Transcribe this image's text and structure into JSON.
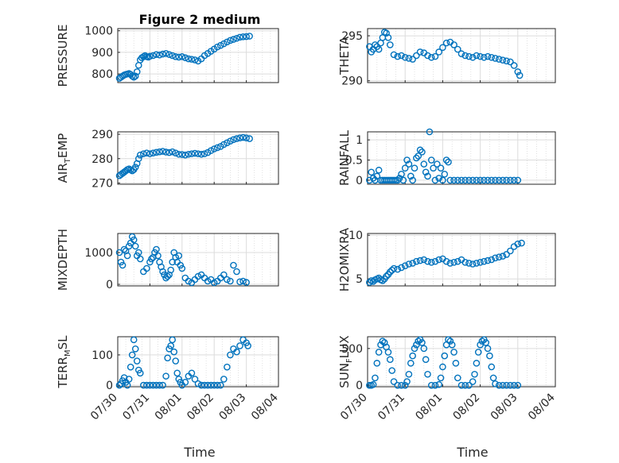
{
  "figure_title": "Figure 2 medium",
  "xlabel": "Time",
  "marker_color": "#0072BD",
  "x_ticks": [
    "07/30",
    "07/31",
    "08/01",
    "08/02",
    "08/03",
    "08/04"
  ],
  "chart_data": [
    {
      "type": "scatter",
      "ylabel": "PRESSURE",
      "yticks": [
        "800",
        "900",
        "1000"
      ],
      "ylim": [
        760,
        1010
      ],
      "grid": "on",
      "x": [
        0.05,
        0.1,
        0.15,
        0.2,
        0.25,
        0.3,
        0.35,
        0.4,
        0.45,
        0.5,
        0.55,
        0.6,
        0.65,
        0.7,
        0.75,
        0.8,
        0.85,
        0.9,
        0.95,
        1.0,
        1.1,
        1.2,
        1.3,
        1.4,
        1.5,
        1.6,
        1.7,
        1.8,
        1.9,
        2.0,
        2.1,
        2.2,
        2.3,
        2.4,
        2.5,
        2.6,
        2.7,
        2.8,
        2.9,
        3.0,
        3.1,
        3.2,
        3.3,
        3.4,
        3.5,
        3.6,
        3.7,
        3.8,
        3.9,
        4.0,
        4.1
      ],
      "y": [
        780,
        785,
        790,
        795,
        798,
        800,
        802,
        798,
        790,
        785,
        790,
        810,
        840,
        865,
        875,
        880,
        885,
        880,
        878,
        882,
        885,
        890,
        888,
        892,
        895,
        890,
        885,
        880,
        878,
        880,
        875,
        870,
        868,
        865,
        860,
        870,
        885,
        895,
        905,
        915,
        925,
        932,
        940,
        948,
        955,
        960,
        965,
        970,
        972,
        973,
        975
      ]
    },
    {
      "type": "scatter",
      "ylabel": "THETA",
      "yticks": [
        "290",
        "295"
      ],
      "ylim": [
        289.8,
        295.8
      ],
      "grid": "on",
      "x": [
        0.05,
        0.1,
        0.15,
        0.2,
        0.25,
        0.3,
        0.35,
        0.4,
        0.45,
        0.5,
        0.55,
        0.6,
        0.7,
        0.8,
        0.9,
        1.0,
        1.1,
        1.2,
        1.3,
        1.4,
        1.5,
        1.6,
        1.7,
        1.8,
        1.9,
        2.0,
        2.1,
        2.2,
        2.3,
        2.4,
        2.5,
        2.6,
        2.7,
        2.8,
        2.9,
        3.0,
        3.1,
        3.2,
        3.3,
        3.4,
        3.5,
        3.6,
        3.7,
        3.8,
        3.9,
        4.0,
        4.05
      ],
      "y": [
        293.8,
        293.2,
        293.5,
        294,
        293.8,
        293.5,
        294.2,
        294.8,
        295.4,
        295.3,
        294.8,
        294,
        292.9,
        292.7,
        292.8,
        292.6,
        292.5,
        292.4,
        292.8,
        293.2,
        293.1,
        292.8,
        292.6,
        292.7,
        293.2,
        293.7,
        294.2,
        294.3,
        294,
        293.5,
        293,
        292.8,
        292.7,
        292.6,
        292.8,
        292.7,
        292.6,
        292.7,
        292.6,
        292.5,
        292.4,
        292.3,
        292.2,
        292.1,
        291.7,
        291,
        290.6
      ]
    },
    {
      "type": "scatter",
      "ylabel": "AIR_TEMP",
      "yticks": [
        "270",
        "280",
        "290"
      ],
      "ylim": [
        269.5,
        291
      ],
      "grid": "on",
      "x": [
        0.05,
        0.1,
        0.15,
        0.2,
        0.25,
        0.3,
        0.35,
        0.4,
        0.45,
        0.5,
        0.55,
        0.6,
        0.65,
        0.7,
        0.8,
        0.9,
        1.0,
        1.1,
        1.2,
        1.3,
        1.4,
        1.5,
        1.6,
        1.7,
        1.8,
        1.9,
        2.0,
        2.1,
        2.2,
        2.3,
        2.4,
        2.5,
        2.6,
        2.7,
        2.8,
        2.9,
        3.0,
        3.1,
        3.2,
        3.3,
        3.4,
        3.5,
        3.6,
        3.7,
        3.8,
        3.9,
        4.0,
        4.1
      ],
      "y": [
        273,
        273.5,
        274,
        274.5,
        275,
        275.5,
        275.8,
        275.4,
        275,
        275.5,
        276.5,
        278,
        280,
        281.5,
        282,
        282.3,
        282,
        282.3,
        282.6,
        282.8,
        283,
        282.7,
        282.5,
        282.8,
        282.3,
        281.8,
        281.7,
        281.5,
        281.8,
        282,
        282.2,
        282,
        281.8,
        282,
        282.5,
        283.3,
        284,
        284.5,
        285,
        285.8,
        286.5,
        287.2,
        287.8,
        288.2,
        288.5,
        288.7,
        288.5,
        288.2
      ]
    },
    {
      "type": "scatter",
      "ylabel": "RAINFALL",
      "yticks": [
        "0",
        "0.5",
        "1"
      ],
      "ylim": [
        -0.1,
        1.2
      ],
      "grid": "on",
      "x": [
        0.05,
        0.1,
        0.15,
        0.2,
        0.25,
        0.3,
        0.35,
        0.4,
        0.45,
        0.5,
        0.55,
        0.6,
        0.65,
        0.7,
        0.75,
        0.8,
        0.85,
        0.9,
        0.95,
        1.0,
        1.05,
        1.1,
        1.15,
        1.2,
        1.25,
        1.3,
        1.35,
        1.4,
        1.45,
        1.5,
        1.55,
        1.6,
        1.65,
        1.7,
        1.75,
        1.8,
        1.85,
        1.9,
        1.95,
        2.0,
        2.05,
        2.1,
        2.15,
        2.2,
        2.3,
        2.4,
        2.5,
        2.6,
        2.7,
        2.8,
        2.9,
        3.0,
        3.1,
        3.2,
        3.3,
        3.4,
        3.5,
        3.6,
        3.7,
        3.8,
        3.9,
        4.0
      ],
      "y": [
        0,
        0.2,
        0.05,
        0,
        0.1,
        0.25,
        0,
        0,
        0,
        0,
        0,
        0,
        0,
        0,
        0,
        0,
        0.05,
        0.15,
        0,
        0.3,
        0.5,
        0.4,
        0.1,
        0,
        0.3,
        0.55,
        0.6,
        0.75,
        0.7,
        0.4,
        0.2,
        0.1,
        1.2,
        0.5,
        0.3,
        0,
        0.4,
        0.05,
        0.3,
        0,
        0.15,
        0.5,
        0.45,
        0,
        0,
        0,
        0,
        0,
        0,
        0,
        0,
        0,
        0,
        0,
        0,
        0,
        0,
        0,
        0,
        0,
        0,
        0
      ]
    },
    {
      "type": "scatter",
      "ylabel": "MIXDEPTH",
      "yticks": [
        "0",
        "1000"
      ],
      "ylim": [
        -50,
        1600
      ],
      "grid": "on",
      "x": [
        0.05,
        0.1,
        0.15,
        0.2,
        0.25,
        0.3,
        0.35,
        0.4,
        0.45,
        0.5,
        0.55,
        0.6,
        0.65,
        0.7,
        0.8,
        0.9,
        1.0,
        1.05,
        1.1,
        1.15,
        1.2,
        1.25,
        1.3,
        1.35,
        1.4,
        1.45,
        1.5,
        1.55,
        1.6,
        1.65,
        1.7,
        1.75,
        1.8,
        1.85,
        1.9,
        1.95,
        2.0,
        2.1,
        2.2,
        2.3,
        2.4,
        2.5,
        2.6,
        2.7,
        2.8,
        2.9,
        3.0,
        3.1,
        3.2,
        3.3,
        3.4,
        3.5,
        3.6,
        3.7,
        3.8,
        3.9,
        4.0
      ],
      "y": [
        1000,
        700,
        600,
        1100,
        1050,
        900,
        1200,
        1300,
        1500,
        1400,
        1200,
        900,
        1000,
        800,
        400,
        500,
        700,
        800,
        850,
        1000,
        1100,
        900,
        700,
        550,
        400,
        300,
        200,
        250,
        300,
        450,
        700,
        1000,
        850,
        700,
        900,
        600,
        500,
        200,
        100,
        50,
        150,
        250,
        300,
        200,
        100,
        150,
        50,
        100,
        200,
        300,
        150,
        100,
        600,
        400,
        80,
        100,
        60
      ]
    },
    {
      "type": "scatter",
      "ylabel": "H2OMIXRA",
      "yticks": [
        "5",
        "10"
      ],
      "ylim": [
        4.2,
        10.2
      ],
      "grid": "on",
      "x": [
        0.05,
        0.1,
        0.15,
        0.2,
        0.25,
        0.3,
        0.35,
        0.4,
        0.45,
        0.5,
        0.55,
        0.6,
        0.65,
        0.7,
        0.8,
        0.9,
        1.0,
        1.1,
        1.2,
        1.3,
        1.4,
        1.5,
        1.6,
        1.7,
        1.8,
        1.9,
        2.0,
        2.1,
        2.2,
        2.3,
        2.4,
        2.5,
        2.6,
        2.7,
        2.8,
        2.9,
        3.0,
        3.1,
        3.2,
        3.3,
        3.4,
        3.5,
        3.6,
        3.7,
        3.8,
        3.9,
        4.0,
        4.1
      ],
      "y": [
        4.6,
        4.8,
        4.7,
        4.9,
        5,
        5.1,
        4.9,
        4.8,
        5,
        5.3,
        5.5,
        5.8,
        6,
        6.2,
        6.1,
        6.3,
        6.5,
        6.7,
        6.8,
        7,
        7.1,
        7.2,
        7,
        6.9,
        7,
        7.2,
        7.3,
        7,
        6.8,
        6.9,
        7,
        7.2,
        6.9,
        6.8,
        6.7,
        6.8,
        6.9,
        7,
        7.1,
        7.2,
        7.4,
        7.5,
        7.6,
        7.8,
        8.2,
        8.7,
        9,
        9.1
      ]
    },
    {
      "type": "scatter",
      "ylabel": "TERR_MSL",
      "yticks": [
        "0",
        "100"
      ],
      "ylim": [
        -5,
        160
      ],
      "grid": "on",
      "x": [
        0.05,
        0.1,
        0.15,
        0.2,
        0.25,
        0.3,
        0.35,
        0.4,
        0.45,
        0.5,
        0.55,
        0.6,
        0.65,
        0.7,
        0.8,
        0.9,
        1.0,
        1.1,
        1.2,
        1.3,
        1.4,
        1.5,
        1.55,
        1.6,
        1.65,
        1.7,
        1.75,
        1.8,
        1.85,
        1.9,
        1.95,
        2.0,
        2.1,
        2.2,
        2.3,
        2.4,
        2.5,
        2.6,
        2.7,
        2.8,
        2.9,
        3.0,
        3.1,
        3.2,
        3.3,
        3.4,
        3.5,
        3.6,
        3.7,
        3.8,
        3.9,
        4.0,
        4.05
      ],
      "y": [
        0,
        5,
        15,
        25,
        10,
        0,
        20,
        60,
        100,
        150,
        120,
        80,
        50,
        40,
        0,
        0,
        0,
        0,
        0,
        0,
        0,
        30,
        90,
        120,
        130,
        150,
        110,
        80,
        40,
        20,
        10,
        0,
        10,
        30,
        40,
        20,
        5,
        0,
        0,
        0,
        0,
        0,
        0,
        0,
        20,
        60,
        100,
        120,
        110,
        130,
        150,
        140,
        130
      ]
    },
    {
      "type": "scatter",
      "ylabel": "SUN_FLUX",
      "yticks": [
        "0",
        "500"
      ],
      "ylim": [
        -20,
        660
      ],
      "grid": "on",
      "x": [
        0.05,
        0.1,
        0.15,
        0.2,
        0.25,
        0.3,
        0.35,
        0.4,
        0.45,
        0.5,
        0.55,
        0.6,
        0.65,
        0.7,
        0.8,
        0.9,
        1.0,
        1.05,
        1.1,
        1.15,
        1.2,
        1.25,
        1.3,
        1.35,
        1.4,
        1.45,
        1.5,
        1.55,
        1.6,
        1.7,
        1.8,
        1.9,
        1.95,
        2.0,
        2.05,
        2.1,
        2.15,
        2.2,
        2.25,
        2.3,
        2.35,
        2.4,
        2.5,
        2.6,
        2.7,
        2.8,
        2.85,
        2.9,
        2.95,
        3.0,
        3.05,
        3.1,
        3.15,
        3.2,
        3.25,
        3.3,
        3.35,
        3.4,
        3.5,
        3.6,
        3.7,
        3.8,
        3.9,
        4.0
      ],
      "y": [
        0,
        0,
        10,
        100,
        300,
        450,
        550,
        600,
        580,
        520,
        450,
        350,
        200,
        50,
        0,
        0,
        0,
        50,
        150,
        300,
        400,
        500,
        550,
        600,
        620,
        580,
        500,
        350,
        150,
        0,
        0,
        10,
        100,
        250,
        400,
        550,
        620,
        600,
        550,
        450,
        300,
        100,
        0,
        0,
        0,
        50,
        150,
        300,
        450,
        550,
        600,
        620,
        580,
        500,
        400,
        250,
        100,
        20,
        0,
        0,
        0,
        0,
        0,
        0
      ]
    }
  ]
}
